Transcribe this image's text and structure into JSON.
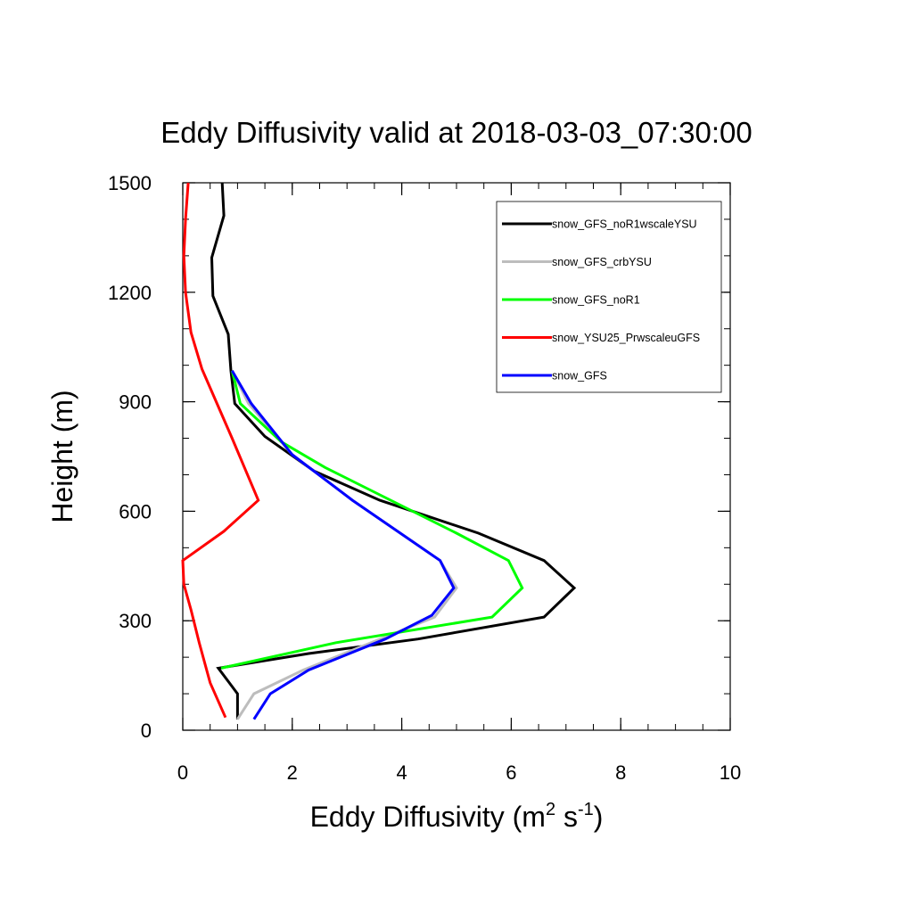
{
  "chart_data": {
    "type": "line",
    "title": "Eddy Diffusivity valid at 2018-03-03_07:30:00",
    "xlabel": {
      "base": "Eddy Diffusivity (m",
      "sup1": "2",
      "mid": " s",
      "sup2": "-1",
      "end": ")"
    },
    "ylabel": "Height (m)",
    "xlim": [
      0,
      10
    ],
    "ylim": [
      0,
      1500
    ],
    "xticks": [
      0,
      2,
      4,
      6,
      8,
      10
    ],
    "xtick_labels": [
      "0",
      "2",
      "4",
      "6",
      "8",
      "10"
    ],
    "yticks": [
      0,
      300,
      600,
      900,
      1200,
      1500
    ],
    "ytick_labels": [
      "0",
      "300",
      "600",
      "900",
      "1200",
      "1500"
    ],
    "x_minor_step": 0.5,
    "y_minor_step": 100,
    "grid": false,
    "legend_position": "top-right",
    "series": [
      {
        "name": "snow_GFS_noR1wscaleYSU",
        "color": "#000000",
        "points": [
          [
            1.0,
            30
          ],
          [
            1.0,
            100
          ],
          [
            0.65,
            170
          ],
          [
            2.3,
            210
          ],
          [
            4.3,
            250
          ],
          [
            6.6,
            310
          ],
          [
            7.15,
            390
          ],
          [
            6.6,
            465
          ],
          [
            5.4,
            540
          ],
          [
            3.6,
            630
          ],
          [
            2.4,
            710
          ],
          [
            1.5,
            805
          ],
          [
            0.95,
            895
          ],
          [
            0.88,
            985
          ],
          [
            0.83,
            1085
          ],
          [
            0.55,
            1190
          ],
          [
            0.53,
            1295
          ],
          [
            0.75,
            1410
          ],
          [
            0.72,
            1500
          ]
        ]
      },
      {
        "name": "snow_GFS_crbYSU",
        "color": "#bdbdbd",
        "points": [
          [
            1.0,
            30
          ],
          [
            1.3,
            100
          ],
          [
            2.2,
            165
          ],
          [
            4.6,
            310
          ],
          [
            5.0,
            390
          ],
          [
            4.7,
            465
          ],
          [
            3.1,
            630
          ],
          [
            2.0,
            755
          ],
          [
            1.2,
            895
          ],
          [
            0.9,
            985
          ]
        ]
      },
      {
        "name": "snow_GFS_noR1",
        "color": "#00ff00",
        "points": [
          [
            0.7,
            170
          ],
          [
            2.8,
            240
          ],
          [
            5.65,
            310
          ],
          [
            6.2,
            390
          ],
          [
            5.95,
            465
          ],
          [
            5.0,
            540
          ],
          [
            2.6,
            720
          ],
          [
            1.8,
            790
          ],
          [
            1.05,
            895
          ],
          [
            0.9,
            985
          ]
        ]
      },
      {
        "name": "snow_YSU25_PrwscaleuGFS",
        "color": "#ff0000",
        "points": [
          [
            0.78,
            35
          ],
          [
            0.5,
            130
          ],
          [
            0.3,
            240
          ],
          [
            0.15,
            330
          ],
          [
            0.02,
            400
          ],
          [
            0.0,
            465
          ],
          [
            0.75,
            545
          ],
          [
            1.38,
            630
          ],
          [
            0.9,
            800
          ],
          [
            0.35,
            990
          ],
          [
            0.15,
            1090
          ],
          [
            0.05,
            1200
          ],
          [
            0.02,
            1300
          ],
          [
            0.05,
            1400
          ],
          [
            0.1,
            1500
          ]
        ]
      },
      {
        "name": "snow_GFS",
        "color": "#0000ff",
        "points": [
          [
            1.3,
            30
          ],
          [
            1.6,
            100
          ],
          [
            2.3,
            165
          ],
          [
            3.7,
            250
          ],
          [
            4.55,
            315
          ],
          [
            4.95,
            390
          ],
          [
            4.7,
            465
          ],
          [
            3.1,
            630
          ],
          [
            2.0,
            755
          ],
          [
            1.25,
            895
          ],
          [
            0.9,
            985
          ]
        ]
      }
    ]
  }
}
